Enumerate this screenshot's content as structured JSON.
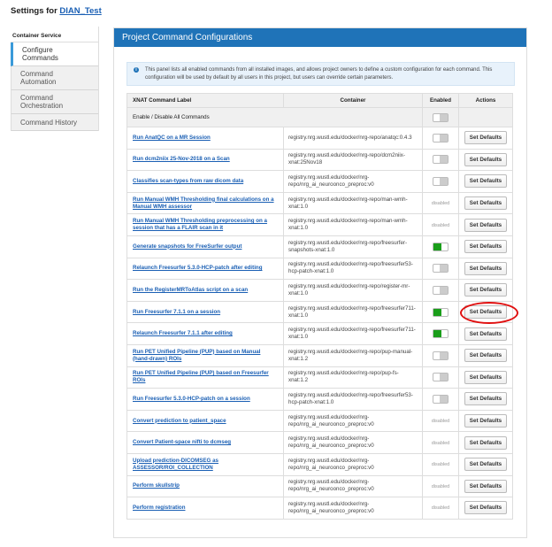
{
  "page": {
    "title_prefix": "Settings for",
    "project": "DIAN_Test"
  },
  "sidebar": {
    "heading": "Container Service",
    "items": [
      {
        "label": "Configure Commands",
        "active": true
      },
      {
        "label": "Command Automation"
      },
      {
        "label": "Command Orchestration"
      },
      {
        "label": "Command History"
      }
    ]
  },
  "panel": {
    "title": "Project Command Configurations",
    "info": "This panel lists all enabled commands from all installed images, and allows project owners to define a custom configuration for each command. This configuration will be used by default by all users in this project, but users can override certain parameters.",
    "info_icon": "info-circle-icon"
  },
  "table": {
    "headers": [
      "XNAT Command Label",
      "Container",
      "Enabled",
      "Actions"
    ],
    "all_label": "Enable / Disable All Commands",
    "all_enabled": false,
    "action_label": "Set Defaults",
    "disabled_label": "disabled",
    "highlight_color": "#e01010",
    "rows": [
      {
        "label": "Run AnatQC on a MR Session",
        "container": "registry.nrg.wustl.edu/docker/nrg-repo/anatqc:0.4.3",
        "enabled": "off"
      },
      {
        "label": "Run dcm2niix 25-Nov-2018 on a Scan",
        "container": "registry.nrg.wustl.edu/docker/nrg-repo/dcm2niix-xnat:25Nov18",
        "enabled": "off"
      },
      {
        "label": "Classifies scan-types from raw dicom data",
        "container": "registry.nrg.wustl.edu/docker/nrg-repo/nrg_ai_neuroonco_preproc:v0",
        "enabled": "off"
      },
      {
        "label": "Run Manual WMH Thresholding final calculations on a Manual WMH assessor",
        "container": "registry.nrg.wustl.edu/docker/nrg-repo/man-wmh-xnat:1.0",
        "enabled": "disabled"
      },
      {
        "label": "Run Manual WMH Thresholding preprocessing on a session that has a FLAIR scan in it",
        "container": "registry.nrg.wustl.edu/docker/nrg-repo/man-wmh-xnat:1.0",
        "enabled": "disabled"
      },
      {
        "label": "Generate snapshots for FreeSurfer output",
        "container": "registry.nrg.wustl.edu/docker/nrg-repo/freesurfer-snapshots-xnat:1.0",
        "enabled": "on"
      },
      {
        "label": "Relaunch Freesurfer 5.3.0-HCP-patch after editing",
        "container": "registry.nrg.wustl.edu/docker/nrg-repo/freesurfer53-hcp-patch-xnat:1.0",
        "enabled": "off"
      },
      {
        "label": "Run the RegisterMRToAtlas script on a scan",
        "container": "registry.nrg.wustl.edu/docker/nrg-repo/register-mr-xnat:1.0",
        "enabled": "off"
      },
      {
        "label": "Run Freesurfer 7.1.1 on a session",
        "container": "registry.nrg.wustl.edu/docker/nrg-repo/freesurfer711-xnat:1.0",
        "enabled": "on",
        "highlighted": true
      },
      {
        "label": "Relaunch Freesurfer 7.1.1 after editing",
        "container": "registry.nrg.wustl.edu/docker/nrg-repo/freesurfer711-xnat:1.0",
        "enabled": "on"
      },
      {
        "label": "Run PET Unified Pipeline (PUP) based on Manual (hand-drawn) ROIs",
        "container": "registry.nrg.wustl.edu/docker/nrg-repo/pup-manual-xnat:1.2",
        "enabled": "off"
      },
      {
        "label": "Run PET Unified Pipeline (PUP) based on Freesurfer ROIs",
        "container": "registry.nrg.wustl.edu/docker/nrg-repo/pup-fs-xnat:1.2",
        "enabled": "off"
      },
      {
        "label": "Run Freesurfer 5.3.0-HCP-patch on a session",
        "container": "registry.nrg.wustl.edu/docker/nrg-repo/freesurfer53-hcp-patch-xnat:1.0",
        "enabled": "off"
      },
      {
        "label": "Convert prediction to patient_space",
        "container": "registry.nrg.wustl.edu/docker/nrg-repo/nrg_ai_neuroonco_preproc:v0",
        "enabled": "disabled"
      },
      {
        "label": "Convert Patient-space nifti to dcmseg",
        "container": "registry.nrg.wustl.edu/docker/nrg-repo/nrg_ai_neuroonco_preproc:v0",
        "enabled": "disabled"
      },
      {
        "label": "Upload prediction-DICOMSEG as ASSESSOR/ROI_COLLECTION",
        "container": "registry.nrg.wustl.edu/docker/nrg-repo/nrg_ai_neuroonco_preproc:v0",
        "enabled": "disabled"
      },
      {
        "label": "Perform skullstrip",
        "container": "registry.nrg.wustl.edu/docker/nrg-repo/nrg_ai_neuroonco_preproc:v0",
        "enabled": "disabled"
      },
      {
        "label": "Perform registration",
        "container": "registry.nrg.wustl.edu/docker/nrg-repo/nrg_ai_neuroonco_preproc:v0",
        "enabled": "disabled"
      }
    ]
  }
}
